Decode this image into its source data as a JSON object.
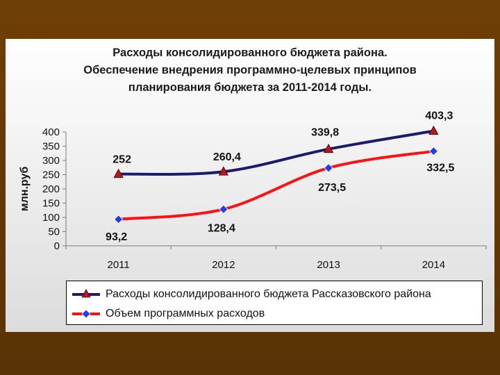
{
  "chart_data": {
    "type": "line",
    "title": [
      "Расходы консолидированного бюджета района.",
      "Обеспечение внедрения программно-целевых принципов",
      "планирования бюджета  за 2011-2014 годы."
    ],
    "ylabel": "млн.руб",
    "xlabel": "",
    "categories": [
      "2011",
      "2012",
      "2013",
      "2014"
    ],
    "ylim": [
      0,
      400
    ],
    "yticks": [
      "0",
      "50",
      "100",
      "150",
      "200",
      "250",
      "300",
      "350",
      "400"
    ],
    "grid": false,
    "legend_position": "bottom",
    "series": [
      {
        "name": "Расходы консолидированного бюджета Рассказовского района",
        "values": [
          252,
          260.4,
          339.8,
          403.3
        ],
        "labels": [
          "252",
          "260,4",
          "339,8",
          "403,3"
        ],
        "color": "#1a1a6e",
        "marker": "triangle",
        "marker_color": "#c0141c"
      },
      {
        "name": "Объем программных расходов",
        "values": [
          93.2,
          128.4,
          273.5,
          332.5
        ],
        "labels": [
          "93,2",
          "128,4",
          "273,5",
          "332,5"
        ],
        "color": "#ff1010",
        "marker": "diamond",
        "marker_color": "#1a3cff"
      }
    ]
  }
}
